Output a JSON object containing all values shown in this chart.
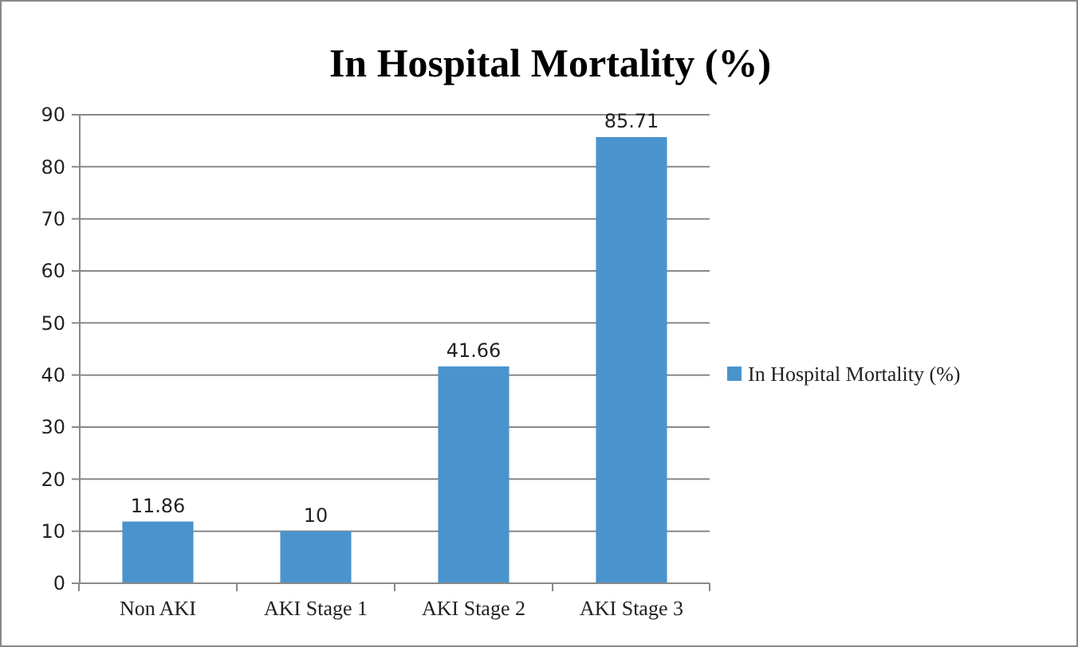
{
  "chart_data": {
    "type": "bar",
    "title": "In Hospital Mortality (%)",
    "categories": [
      "Non AKI",
      "AKI Stage 1",
      "AKI Stage 2",
      "AKI Stage 3"
    ],
    "series": [
      {
        "name": "In Hospital Mortality (%)",
        "color": "#4a94cd",
        "values": [
          11.86,
          10,
          41.66,
          85.71
        ]
      }
    ],
    "ylim": [
      0,
      90
    ],
    "yticks": [
      0,
      10,
      20,
      30,
      40,
      50,
      60,
      70,
      80,
      90
    ],
    "grid": "y",
    "legend": "right",
    "data_labels": true
  }
}
